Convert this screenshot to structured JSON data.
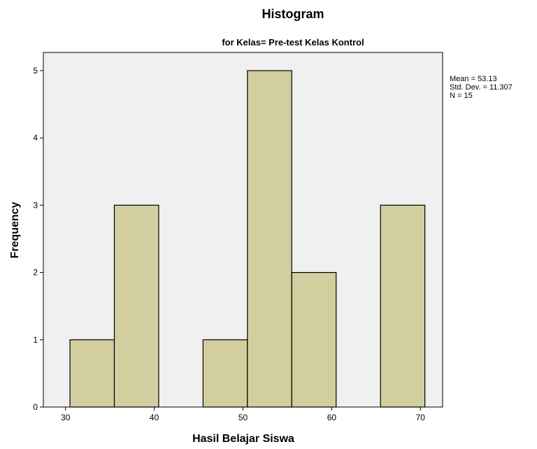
{
  "chart_data": {
    "type": "bar",
    "title": "Histogram",
    "subtitle": "for Kelas= Pre-test Kelas Kontrol",
    "xlabel": "Hasil Belajar Siswa",
    "ylabel": "Frequency",
    "xlim": [
      27.5,
      72.5
    ],
    "ylim": [
      0,
      5.27
    ],
    "x_ticks": [
      30,
      40,
      50,
      60,
      70
    ],
    "y_ticks": [
      0,
      1,
      2,
      3,
      4,
      5
    ],
    "bins": [
      {
        "start": 30.5,
        "end": 35.5,
        "value": 1
      },
      {
        "start": 35.5,
        "end": 40.5,
        "value": 3
      },
      {
        "start": 40.5,
        "end": 45.5,
        "value": 0
      },
      {
        "start": 45.5,
        "end": 50.5,
        "value": 1
      },
      {
        "start": 50.5,
        "end": 55.5,
        "value": 5
      },
      {
        "start": 55.5,
        "end": 60.5,
        "value": 2
      },
      {
        "start": 60.5,
        "end": 65.5,
        "value": 0
      },
      {
        "start": 65.5,
        "end": 70.5,
        "value": 3
      }
    ],
    "stats": [
      "Mean = 53.13",
      "Std. Dev. = 11.307",
      "N = 15"
    ],
    "grid": false,
    "colors": {
      "bar_fill": "#D3CE9F",
      "bar_stroke": "#000000",
      "plot_background": "#F0F0F0"
    }
  }
}
